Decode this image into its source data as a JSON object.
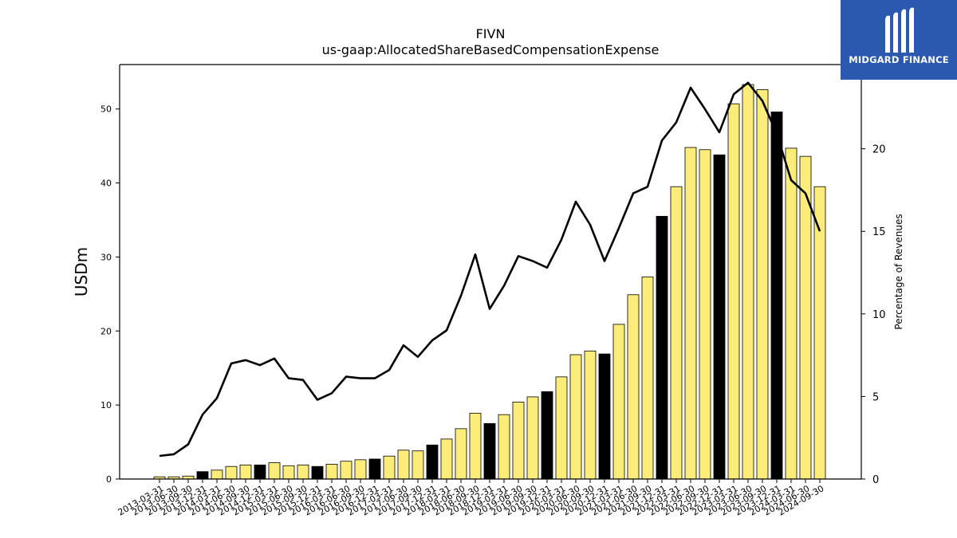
{
  "chart_data": {
    "type": "bar",
    "title": "FIVN",
    "subtitle": "us-gaap:AllocatedShareBasedCompensationExpense",
    "ylabel": "USDm",
    "y2label": "Percentage of Revenues",
    "ylim": [
      0,
      56
    ],
    "y2lim": [
      0,
      25.1
    ],
    "yticks": [
      0,
      10,
      20,
      30,
      40,
      50
    ],
    "y2ticks": [
      0,
      5,
      10,
      15,
      20
    ],
    "categories": [
      "2013-03-31",
      "2013-06-30",
      "2013-09-30",
      "2013-12-31",
      "2014-03-31",
      "2014-06-30",
      "2014-09-30",
      "2014-12-31",
      "2015-03-31",
      "2015-06-30",
      "2015-09-30",
      "2015-12-31",
      "2016-03-31",
      "2016-06-30",
      "2016-09-30",
      "2016-12-31",
      "2017-03-31",
      "2017-06-30",
      "2017-09-30",
      "2017-12-31",
      "2018-03-31",
      "2018-06-30",
      "2018-09-30",
      "2018-12-31",
      "2019-03-31",
      "2019-06-30",
      "2019-09-30",
      "2019-12-31",
      "2020-03-31",
      "2020-06-30",
      "2020-09-30",
      "2020-12-31",
      "2021-03-31",
      "2021-06-30",
      "2021-09-30",
      "2021-12-31",
      "2022-03-31",
      "2022-06-30",
      "2022-09-30",
      "2022-12-31",
      "2023-03-31",
      "2023-06-30",
      "2023-09-30",
      "2023-12-31",
      "2024-03-31",
      "2024-06-30",
      "2024-09-30"
    ],
    "series": [
      {
        "type": "bar",
        "axis": "left",
        "values": [
          0.3,
          0.3,
          0.4,
          1.0,
          1.2,
          1.7,
          1.9,
          1.9,
          2.2,
          1.8,
          1.9,
          1.7,
          2.0,
          2.4,
          2.6,
          2.7,
          3.1,
          3.9,
          3.8,
          4.6,
          5.4,
          6.8,
          8.9,
          7.5,
          8.7,
          10.4,
          11.1,
          11.8,
          13.8,
          16.8,
          17.3,
          16.9,
          20.9,
          24.9,
          27.3,
          35.5,
          39.5,
          44.8,
          44.5,
          43.8,
          50.7,
          53.3,
          52.6,
          49.6,
          44.7,
          43.6,
          39.5
        ],
        "year_end_color": "#000000",
        "quarter_color": "#fced7a"
      },
      {
        "type": "line",
        "axis": "right",
        "color": "#000000",
        "values": [
          1.4,
          1.5,
          2.1,
          3.9,
          4.9,
          7.0,
          7.2,
          6.9,
          7.3,
          6.1,
          6.0,
          4.8,
          5.2,
          6.2,
          6.1,
          6.1,
          6.6,
          8.1,
          7.4,
          8.4,
          9.0,
          11.1,
          13.6,
          10.3,
          11.7,
          13.5,
          13.2,
          12.8,
          14.5,
          16.8,
          15.4,
          13.2,
          15.2,
          17.3,
          17.7,
          20.5,
          21.6,
          23.7,
          22.4,
          21.0,
          23.3,
          24.0,
          22.9,
          20.9,
          18.1,
          17.3,
          15.0
        ]
      }
    ],
    "grid": false
  },
  "logo": {
    "text": "MIDGARD FINANCE",
    "icon": "midgard-logo-icon"
  }
}
